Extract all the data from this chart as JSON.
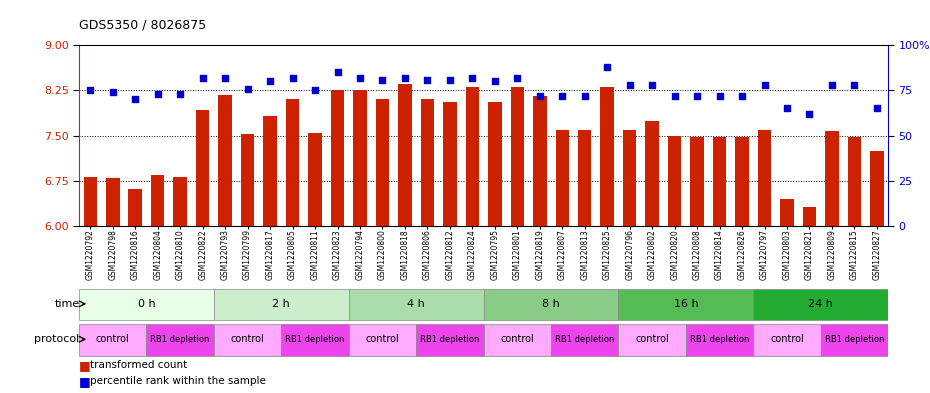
{
  "title": "GDS5350 / 8026875",
  "samples": [
    "GSM1220792",
    "GSM1220798",
    "GSM1220816",
    "GSM1220804",
    "GSM1220810",
    "GSM1220822",
    "GSM1220793",
    "GSM1220799",
    "GSM1220817",
    "GSM1220805",
    "GSM1220811",
    "GSM1220823",
    "GSM1220794",
    "GSM1220800",
    "GSM1220818",
    "GSM1220806",
    "GSM1220812",
    "GSM1220824",
    "GSM1220795",
    "GSM1220801",
    "GSM1220819",
    "GSM1220807",
    "GSM1220813",
    "GSM1220825",
    "GSM1220796",
    "GSM1220802",
    "GSM1220820",
    "GSM1220808",
    "GSM1220814",
    "GSM1220826",
    "GSM1220797",
    "GSM1220803",
    "GSM1220821",
    "GSM1220809",
    "GSM1220815",
    "GSM1220827"
  ],
  "bar_values": [
    6.82,
    6.8,
    6.62,
    6.85,
    6.82,
    7.92,
    8.18,
    7.53,
    7.82,
    8.1,
    7.55,
    8.25,
    8.25,
    8.1,
    8.35,
    8.1,
    8.05,
    8.3,
    8.05,
    8.3,
    8.15,
    7.6,
    7.6,
    8.3,
    7.6,
    7.75,
    7.5,
    7.48,
    7.48,
    7.48,
    7.6,
    6.45,
    6.32,
    7.58,
    7.48,
    7.25
  ],
  "scatter_values": [
    75,
    74,
    70,
    73,
    73,
    82,
    82,
    76,
    80,
    82,
    75,
    85,
    82,
    81,
    82,
    81,
    81,
    82,
    80,
    82,
    72,
    72,
    72,
    88,
    78,
    78,
    72,
    72,
    72,
    72,
    78,
    65,
    62,
    78,
    78,
    65
  ],
  "time_colors": [
    "#e8ffe8",
    "#cceecc",
    "#aaddaa",
    "#88cc88",
    "#55bb55",
    "#22aa33"
  ],
  "protocol_control_color": "#ffaaff",
  "protocol_rb1_color": "#ee44ee",
  "ylim_left": [
    6.0,
    9.0
  ],
  "ylim_right": [
    0,
    100
  ],
  "yticks_left": [
    6.0,
    6.75,
    7.5,
    8.25,
    9.0
  ],
  "yticks_right": [
    0,
    25,
    50,
    75,
    100
  ],
  "bar_color": "#cc2200",
  "scatter_color": "#0000cc",
  "background_color": "#ffffff",
  "xlabel_bg": "#d8d8d8"
}
